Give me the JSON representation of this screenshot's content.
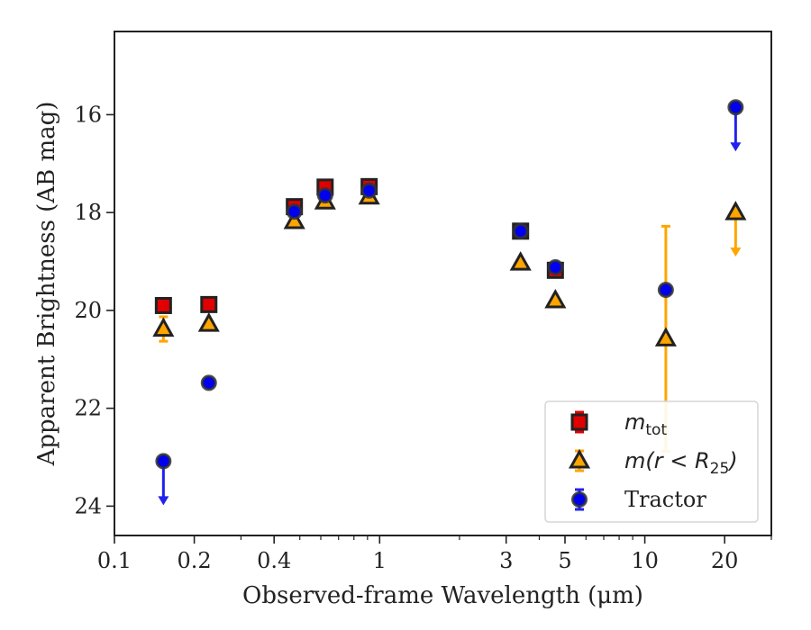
{
  "chart_data": {
    "type": "scatter",
    "xlabel": "Observed-frame Wavelength (μm)",
    "ylabel": "Apparent Brightness (AB mag)",
    "xscale": "log",
    "xlim": [
      0.1,
      30
    ],
    "ylim": [
      24.6,
      14.3
    ],
    "y_inverted": true,
    "x_ticks": [
      0.1,
      0.2,
      0.4,
      1,
      3,
      5,
      10,
      20
    ],
    "x_tick_labels": [
      "0.1",
      "0.2",
      "0.4",
      "1",
      "3",
      "5",
      "10",
      "20"
    ],
    "y_ticks": [
      16,
      18,
      20,
      22,
      24
    ],
    "y_tick_labels": [
      "16",
      "18",
      "20",
      "22",
      "24"
    ],
    "grid": false,
    "legend_position": "bottom-right",
    "series": [
      {
        "name": "m_tot",
        "legend_main": "m",
        "legend_sub": "tot",
        "marker": "square",
        "color": "#e00000",
        "edge_color": "#222222",
        "points": [
          {
            "x": 0.153,
            "y": 19.9,
            "err": 0.05
          },
          {
            "x": 0.227,
            "y": 19.88,
            "err": 0.05
          },
          {
            "x": 0.477,
            "y": 17.88,
            "err": 0.05
          },
          {
            "x": 0.623,
            "y": 17.48,
            "err": 0.05
          },
          {
            "x": 0.913,
            "y": 17.47,
            "err": 0.05
          },
          {
            "x": 3.4,
            "y": 18.38,
            "err": 0.05
          },
          {
            "x": 4.6,
            "y": 19.18,
            "err": 0.05
          }
        ]
      },
      {
        "name": "m(r < R25)",
        "legend_main": "m(r < R",
        "legend_sub": "25",
        "legend_end": ")",
        "marker": "triangle",
        "color": "#ffa500",
        "edge_color": "#222222",
        "points": [
          {
            "x": 0.153,
            "y": 20.38,
            "err": 0.25
          },
          {
            "x": 0.227,
            "y": 20.28,
            "err": 0.05
          },
          {
            "x": 0.477,
            "y": 18.18,
            "err": 0.05
          },
          {
            "x": 0.623,
            "y": 17.78,
            "err": 0.05
          },
          {
            "x": 0.913,
            "y": 17.68,
            "err": 0.05
          },
          {
            "x": 3.4,
            "y": 19.03,
            "err": 0.05
          },
          {
            "x": 4.6,
            "y": 19.8,
            "err": 0.05
          },
          {
            "x": 12.0,
            "y": 20.58,
            "err_low": 2.3,
            "err_high": 2.3
          },
          {
            "x": 22.0,
            "y": 18.0,
            "upper_limit": true
          }
        ]
      },
      {
        "name": "Tractor",
        "marker": "circle",
        "color": "#0000ee",
        "edge_color": "#333333",
        "points": [
          {
            "x": 0.153,
            "y": 23.08,
            "upper_limit": true
          },
          {
            "x": 0.227,
            "y": 21.48,
            "err": 0.05
          },
          {
            "x": 0.477,
            "y": 17.98,
            "err": 0.05
          },
          {
            "x": 0.623,
            "y": 17.65,
            "err": 0.05
          },
          {
            "x": 0.913,
            "y": 17.55,
            "err": 0.05
          },
          {
            "x": 3.4,
            "y": 18.38,
            "err": 0.05
          },
          {
            "x": 4.6,
            "y": 19.12,
            "err": 0.05
          },
          {
            "x": 12.0,
            "y": 19.58,
            "err": 0.05
          },
          {
            "x": 22.0,
            "y": 15.85,
            "upper_limit": true
          }
        ]
      }
    ]
  }
}
